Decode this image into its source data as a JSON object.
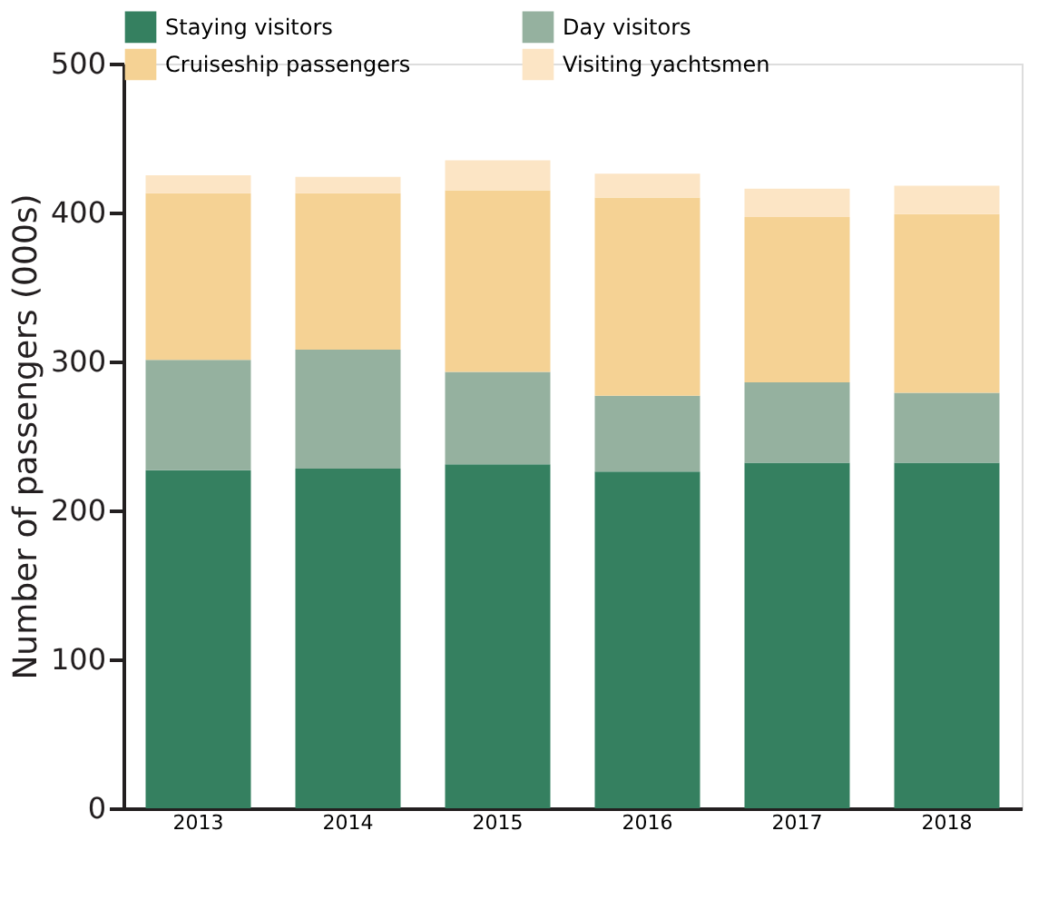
{
  "chart_data": {
    "type": "bar",
    "stacked": true,
    "ylabel": "Number of passengers (000s)",
    "categories": [
      "2013",
      "2014",
      "2015",
      "2016",
      "2017",
      "2018"
    ],
    "series": [
      {
        "name": "Staying visitors",
        "color": "#358060",
        "values": [
          227,
          228,
          231,
          226,
          232,
          232
        ]
      },
      {
        "name": "Day visitors",
        "color": "#95b19f",
        "values": [
          74,
          80,
          62,
          51,
          54,
          47
        ]
      },
      {
        "name": "Cruiseship passengers",
        "color": "#f5d294",
        "values": [
          112,
          105,
          122,
          133,
          111,
          120
        ]
      },
      {
        "name": "Visiting yachtsmen",
        "color": "#fce5c5",
        "values": [
          12,
          11,
          20,
          16,
          19,
          19
        ]
      }
    ],
    "ylim": [
      0,
      500
    ],
    "yticks": [
      0,
      100,
      200,
      300,
      400,
      500
    ],
    "grid": false,
    "legend": "top"
  }
}
